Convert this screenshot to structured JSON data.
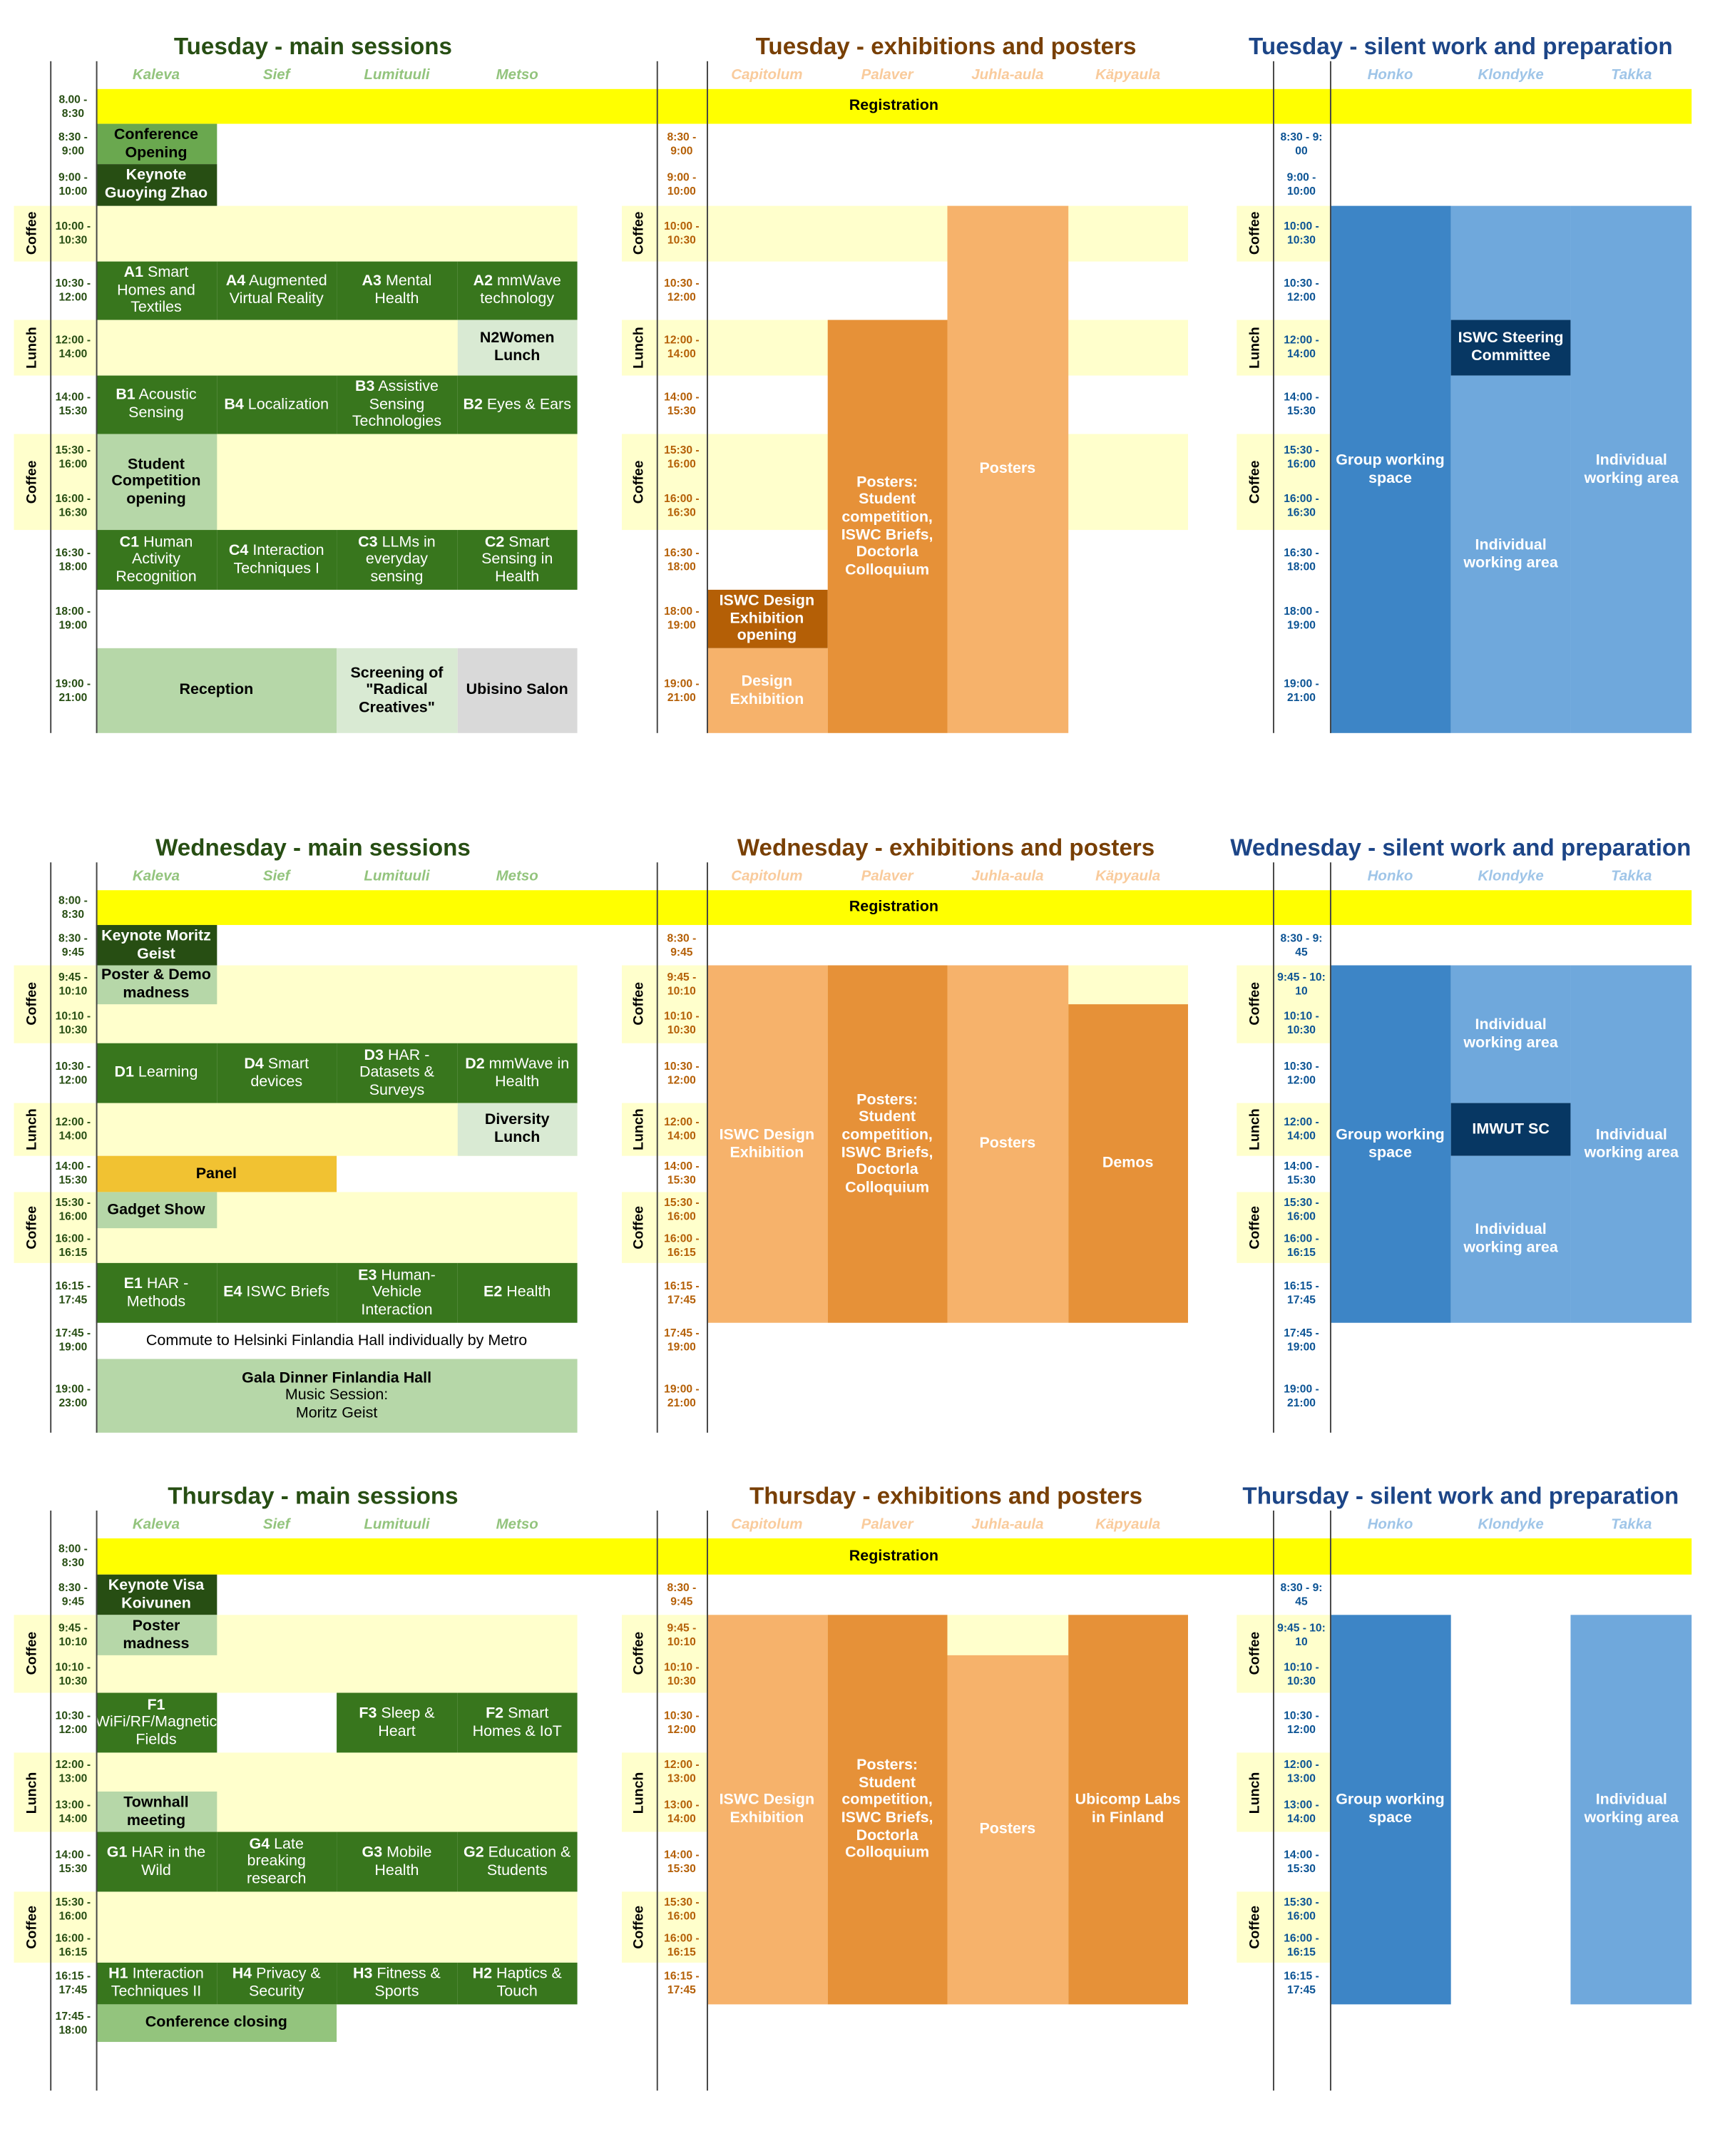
{
  "days": [
    {
      "registration": "Registration",
      "breaks": [
        "Coffee",
        "Lunch",
        "Coffee"
      ],
      "panels": [
        {
          "title": "Tuesday - main sessions",
          "rooms": [
            "Kaleva",
            "Sief",
            "Lumituuli",
            "Metso"
          ],
          "times": [
            "8.00 - 8:30",
            "8:30 - 9:00",
            "9:00 - 10:00",
            "10:00 - 10:30",
            "10:30 - 12:00",
            "12:00 - 14:00",
            "14:00 - 15:30",
            "15:30 - 16:00",
            "16:00 - 16:30",
            "16:30 - 18:00",
            "18:00 - 19:00",
            "19:00 - 21:00"
          ],
          "blocks": [
            {
              "text": "Conference Opening"
            },
            {
              "text": "Keynote Guoying Zhao"
            },
            {
              "code": "A1",
              "text": "Smart Homes and Textiles"
            },
            {
              "code": "A4",
              "text": "Augmented Virtual Reality"
            },
            {
              "code": "A3",
              "text": "Mental Health"
            },
            {
              "code": "A2",
              "text": "mmWave technology"
            },
            {
              "text": "N2Women Lunch"
            },
            {
              "code": "B1",
              "text": "Acoustic Sensing"
            },
            {
              "code": "B4",
              "text": "Localization"
            },
            {
              "code": "B3",
              "text": "Assistive Sensing Technologies"
            },
            {
              "code": "B2",
              "text": "Eyes & Ears"
            },
            {
              "text": "Student Competition opening"
            },
            {
              "code": "C1",
              "text": "Human Activity Recognition"
            },
            {
              "code": "C4",
              "text": "Interaction Techniques I"
            },
            {
              "code": "C3",
              "text": "LLMs in everyday sensing"
            },
            {
              "code": "C2",
              "text": "Smart Sensing in Health"
            },
            {
              "text": "Reception"
            },
            {
              "text": "Screening of \"Radical Creatives\""
            },
            {
              "text": "Ubisino Salon"
            }
          ]
        },
        {
          "title": "Tuesday - exhibitions and posters",
          "rooms": [
            "Capitolum",
            "Palaver",
            "Juhla-aula",
            "Käpyaula"
          ],
          "times": [
            null,
            "8:30 - 9:00",
            "9:00 - 10:00",
            "10:00 - 10:30",
            "10:30 - 12:00",
            "12:00 - 14:00",
            "14:00 - 15:30",
            "15:30 - 16:00",
            "16:00 - 16:30",
            "16:30 - 18:00",
            "18:00 - 19:00",
            "19:00 - 21:00"
          ],
          "blocks": [
            {
              "text": "ISWC Design Exhibition opening"
            },
            {
              "text": "Design Exhibition"
            },
            {
              "text": "Posters: Student competition, ISWC Briefs, Doctorla Colloquium"
            },
            {
              "text": "Posters"
            }
          ]
        },
        {
          "title": "Tuesday - silent work and preparation",
          "rooms": [
            "Honko",
            "Klondyke",
            "Takka"
          ],
          "times": [
            null,
            "8:30 - 9: 00",
            "9:00 - 10:00",
            "10:00 - 10:30",
            "10:30 - 12:00",
            "12:00 - 14:00",
            "14:00 - 15:30",
            "15:30 - 16:00",
            "16:00 - 16:30",
            "16:30 - 18:00",
            "18:00 - 19:00",
            "19:00 - 21:00"
          ],
          "blocks": [
            {
              "text": "Group working space"
            },
            {
              "text": "ISWC Steering Committee"
            },
            {
              "text": "Individual working area"
            },
            {
              "text": "Individual working area"
            }
          ]
        }
      ]
    },
    {
      "registration": "Registration",
      "breaks": [
        "Coffee",
        "Lunch",
        "Coffee"
      ],
      "panels": [
        {
          "title": "Wednesday - main sessions",
          "rooms": [
            "Kaleva",
            "Sief",
            "Lumituuli",
            "Metso"
          ],
          "times": [
            "8:00 - 8:30",
            "8:30 - 9:45",
            "9:45 - 10:10",
            "10:10 - 10:30",
            "10:30 - 12:00",
            "12:00 - 14:00",
            "14:00 - 15:30",
            "15:30 - 16:00",
            "16:00 - 16:15",
            "16:15 - 17:45",
            "17:45 - 19:00",
            "19:00 - 23:00"
          ],
          "blocks": [
            {
              "text": "Keynote Moritz Geist"
            },
            {
              "text": "Poster & Demo madness"
            },
            {
              "code": "D1",
              "text": "Learning"
            },
            {
              "code": "D4",
              "text": "Smart devices"
            },
            {
              "code": "D3",
              "text": "HAR - Datasets & Surveys"
            },
            {
              "code": "D2",
              "text": "mmWave in Health"
            },
            {
              "text": "Diversity Lunch"
            },
            {
              "text": "Panel"
            },
            {
              "text": "Gadget Show"
            },
            {
              "code": "E1",
              "text": "HAR - Methods"
            },
            {
              "code": "E4",
              "text": "ISWC Briefs"
            },
            {
              "code": "E3",
              "text": "Human-Vehicle Interaction"
            },
            {
              "code": "E2",
              "text": "Health"
            },
            {
              "text": "Commute to Helsinki Finlandia Hall individually by Metro"
            },
            {
              "text": "Gala Dinner Finlandia Hall",
              "note": [
                "Music Session:",
                "Moritz Geist"
              ]
            }
          ]
        },
        {
          "title": "Wednesday - exhibitions and posters",
          "rooms": [
            "Capitolum",
            "Palaver",
            "Juhla-aula",
            "Käpyaula"
          ],
          "times": [
            null,
            "8:30 - 9:45",
            "9:45 - 10:10",
            "10:10 - 10:30",
            "10:30 - 12:00",
            "12:00 - 14:00",
            "14:00 - 15:30",
            "15:30 - 16:00",
            "16:00 - 16:15",
            "16:15 - 17:45",
            "17:45 - 19:00",
            "19:00 - 21:00"
          ],
          "blocks": [
            {
              "text": "ISWC Design Exhibition"
            },
            {
              "text": "Posters: Student competition, ISWC Briefs, Doctorla Colloquium"
            },
            {
              "text": "Posters"
            },
            {
              "text": "Demos"
            }
          ]
        },
        {
          "title": "Wednesday - silent work and preparation",
          "rooms": [
            "Honko",
            "Klondyke",
            "Takka"
          ],
          "times": [
            null,
            "8:30 - 9: 45",
            "9:45 - 10: 10",
            "10:10 - 10:30",
            "10:30 - 12:00",
            "12:00 - 14:00",
            "14:00 - 15:30",
            "15:30 - 16:00",
            "16:00 - 16:15",
            "16:15 - 17:45",
            "17:45 - 19:00",
            "19:00 - 21:00"
          ],
          "blocks": [
            {
              "text": "Group working space"
            },
            {
              "text": "Individual working area"
            },
            {
              "text": "IMWUT SC"
            },
            {
              "text": "Individual working area"
            },
            {
              "text": "Individual working area"
            }
          ]
        }
      ]
    },
    {
      "registration": "Registration",
      "breaks": [
        "Coffee",
        "Lunch",
        "Coffee"
      ],
      "panels": [
        {
          "title": "Thursday - main sessions",
          "rooms": [
            "Kaleva",
            "Sief",
            "Lumituuli",
            "Metso"
          ],
          "times": [
            "8:00 - 8:30",
            "8:30 - 9:45",
            "9:45 - 10:10",
            "10:10 - 10:30",
            "10:30 - 12:00",
            "12:00 - 13:00",
            "13:00 - 14:00",
            "14:00 - 15:30",
            "15:30 - 16:00",
            "16:00 - 16:15",
            "16:15 - 17:45",
            "17:45 - 18:00"
          ],
          "blocks": [
            {
              "text": "Keynote Visa Koivunen"
            },
            {
              "text": "Poster madness"
            },
            {
              "code": "F1",
              "text": "WiFi/RF/Magnetic Fields"
            },
            {
              "code": "F3",
              "text": "Sleep & Heart"
            },
            {
              "code": "F2",
              "text": "Smart Homes & IoT"
            },
            {
              "text": "Townhall meeting"
            },
            {
              "code": "G1",
              "text": "HAR in the Wild"
            },
            {
              "code": "G4",
              "text": "Late breaking research"
            },
            {
              "code": "G3",
              "text": "Mobile Health"
            },
            {
              "code": "G2",
              "text": "Education & Students"
            },
            {
              "code": "H1",
              "text": "Interaction Techniques II"
            },
            {
              "code": "H4",
              "text": "Privacy & Security"
            },
            {
              "code": "H3",
              "text": "Fitness & Sports"
            },
            {
              "code": "H2",
              "text": "Haptics & Touch"
            },
            {
              "text": "Conference closing"
            }
          ]
        },
        {
          "title": "Thursday - exhibitions and posters",
          "rooms": [
            "Capitolum",
            "Palaver",
            "Juhla-aula",
            "Käpyaula"
          ],
          "times": [
            null,
            "8:30 - 9:45",
            "9:45 - 10:10",
            "10:10 - 10:30",
            "10:30 - 12:00",
            "12:00 - 13:00",
            "13:00 - 14:00",
            "14:00 - 15:30",
            "15:30 - 16:00",
            "16:00 - 16:15",
            "16:15 - 17:45",
            null
          ],
          "blocks": [
            {
              "text": "ISWC Design Exhibition"
            },
            {
              "text": "Posters: Student competition, ISWC Briefs, Doctorla Colloquium"
            },
            {
              "text": "Posters"
            },
            {
              "text": "Ubicomp Labs in Finland"
            }
          ]
        },
        {
          "title": "Thursday - silent work and preparation",
          "rooms": [
            "Honko",
            "Klondyke",
            "Takka"
          ],
          "times": [
            null,
            "8:30 - 9: 45",
            "9:45 - 10: 10",
            "10:10 - 10:30",
            "10:30 - 12:00",
            "12:00 - 13:00",
            "13:00 - 14:00",
            "14:00 - 15:30",
            "15:30 - 16:00",
            "16:00 - 16:15",
            "16:15 - 17:45",
            null
          ],
          "blocks": [
            {
              "text": "Group working space"
            },
            {
              "text": "Individual working area"
            }
          ]
        }
      ]
    }
  ]
}
